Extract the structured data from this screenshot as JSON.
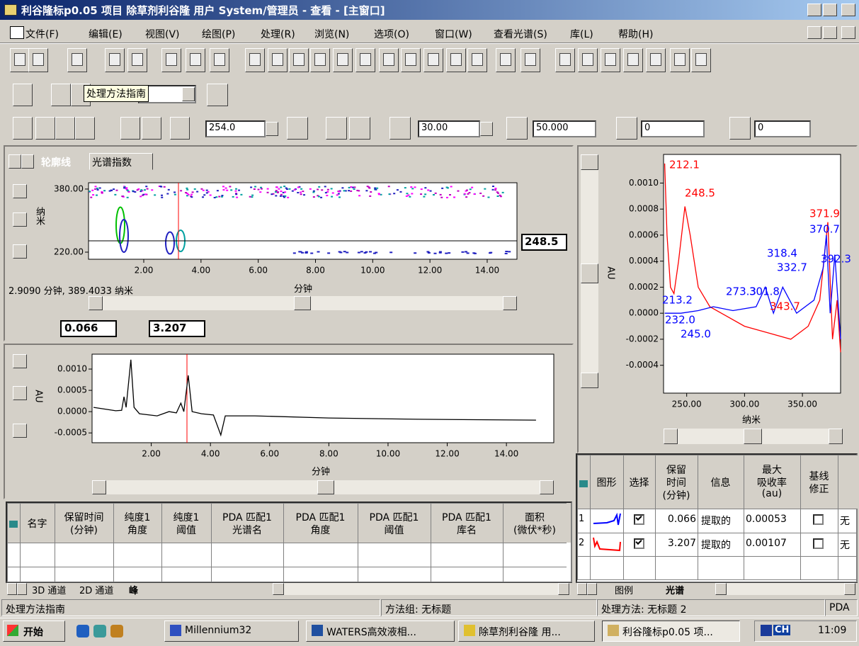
{
  "window": {
    "title": "利谷隆标p0.05 项目 除草剂利谷隆 用户 System/管理员 - 查看 - [主窗口]",
    "menu": [
      "文件(F)",
      "编辑(E)",
      "视图(V)",
      "绘图(P)",
      "处理(R)",
      "浏览(N)",
      "选项(O)",
      "窗口(W)",
      "查看光谱(S)",
      "库(L)",
      "帮助(H)"
    ]
  },
  "toolbar": {
    "tooltip": "处理方法指南",
    "wavelength": "254.0",
    "fields": [
      "30.00",
      "50.000",
      "0",
      "0"
    ]
  },
  "contour": {
    "tabs": [
      "轮廓线",
      "光谱指数"
    ],
    "ylabel": "纳米",
    "xlabel": "分钟",
    "xlim": [
      0.07,
      15.04
    ],
    "ylim": [
      202,
      396
    ],
    "xticks": [
      {
        "value": 2,
        "label": "2.00"
      },
      {
        "value": 4,
        "label": "4.00"
      },
      {
        "value": 6,
        "label": "6.00"
      },
      {
        "value": 8,
        "label": "8.00"
      },
      {
        "value": 10,
        "label": "10.00"
      },
      {
        "value": 12,
        "label": "12.00"
      },
      {
        "value": 14,
        "label": "14.00"
      }
    ],
    "yticks": [
      {
        "value": 380,
        "label": "380.00"
      },
      {
        "value": 220,
        "label": "220.00"
      }
    ],
    "wavelength": "248.5",
    "cursor": "2.9090 分钟, 389.4033 纳米",
    "range": [
      "0.066",
      "3.207"
    ]
  },
  "chromatogram": {
    "type": "line",
    "xlabel": "分钟",
    "ylabel": "AU",
    "color": "#000000",
    "xlim": [
      0,
      15.6
    ],
    "ylim": [
      -0.00073,
      0.00135
    ],
    "xticks": [
      {
        "value": 2,
        "label": "2.00"
      },
      {
        "value": 4,
        "label": "4.00"
      },
      {
        "value": 6,
        "label": "6.00"
      },
      {
        "value": 8,
        "label": "8.00"
      },
      {
        "value": 10,
        "label": "10.00"
      },
      {
        "value": 12,
        "label": "12.00"
      },
      {
        "value": 14,
        "label": "14.00"
      }
    ],
    "yticks": [
      {
        "value": 0.001,
        "label": "0.0010"
      },
      {
        "value": 0.0005,
        "label": "0.0005"
      },
      {
        "value": 0,
        "label": "0.0000"
      },
      {
        "value": -0.0005,
        "label": "-0.0005"
      }
    ],
    "x": [
      0.05,
      0.8,
      1.0,
      1.08,
      1.15,
      1.31,
      1.42,
      1.6,
      2.2,
      2.6,
      2.85,
      3.0,
      3.1,
      3.25,
      3.38,
      3.7,
      4.1,
      4.35,
      4.5,
      5.5,
      8,
      11,
      15
    ],
    "values": [
      0.0001,
      2e-05,
      3e-05,
      0.00035,
      0.0001,
      0.00122,
      0.0001,
      -5e-05,
      -0.0001,
      0.0,
      -3e-05,
      0.0002,
      0.0,
      0.00085,
      0.0,
      -5e-05,
      -8e-05,
      -0.00055,
      -0.0001,
      -0.0001,
      -0.00015,
      -0.00018,
      -0.0002
    ]
  },
  "spectrum": {
    "type": "line",
    "xlabel": "纳米",
    "ylabel": "AU",
    "xlim": [
      230,
      383
    ],
    "ylim": [
      -0.000614,
      0.00122
    ],
    "xticks": [
      {
        "value": 250,
        "label": "250.00"
      },
      {
        "value": 300,
        "label": "300.00"
      },
      {
        "value": 350,
        "label": "350.00"
      }
    ],
    "yticks": [
      {
        "value": 0.001,
        "label": "0.0010"
      },
      {
        "value": 0.0008,
        "label": "0.0008"
      },
      {
        "value": 0.0006,
        "label": "0.0006"
      },
      {
        "value": 0.0004,
        "label": "0.0004"
      },
      {
        "value": 0.0002,
        "label": "0.0002"
      },
      {
        "value": 0,
        "label": "0.0000"
      },
      {
        "value": -0.0002,
        "label": "-0.0002"
      },
      {
        "value": -0.0004,
        "label": "-0.0004"
      }
    ],
    "series": [
      {
        "color": "#ff0000",
        "x": [
          231,
          233,
          236,
          239,
          243,
          248.5,
          253,
          260,
          270,
          280,
          300,
          320,
          340,
          355,
          365,
          372,
          376,
          380,
          383
        ],
        "values": [
          0.00115,
          0.0006,
          0.0002,
          0.00015,
          0.0004,
          0.00082,
          0.0006,
          0.0002,
          5e-05,
          0.0,
          -0.0001,
          -0.00015,
          -0.0002,
          -0.0001,
          0.0001,
          0.0007,
          -0.0002,
          0.0001,
          -0.0003
        ]
      },
      {
        "color": "#0000ff",
        "x": [
          231,
          245,
          260,
          273,
          290,
          310,
          318,
          325,
          333,
          345,
          360,
          368,
          370.7,
          374,
          378,
          383
        ],
        "values": [
          0.0,
          0.0,
          2e-05,
          5e-05,
          2e-05,
          5e-05,
          0.0002,
          0.0,
          0.0002,
          0.0,
          0.0001,
          0.00035,
          0.0006,
          0.0,
          0.00045,
          -0.0002
        ]
      }
    ],
    "annotations": [
      "212.1",
      "248.5",
      "371.9",
      "370.7",
      "318.4",
      "332.7",
      "392.3",
      "273.3",
      "301.8",
      "213.2",
      "232.0",
      "245.0",
      "343.7"
    ]
  },
  "peak_table": {
    "columns": [
      [
        "名字"
      ],
      [
        "保留时间",
        "(分钟)"
      ],
      [
        "纯度1",
        "角度"
      ],
      [
        "纯度1",
        "阈值"
      ],
      [
        "PDA 匹配1",
        "光谱名"
      ],
      [
        "PDA 匹配1",
        "角度"
      ],
      [
        "PDA 匹配1",
        "阈值"
      ],
      [
        "PDA 匹配1",
        "库名"
      ],
      [
        "面积",
        "(微伏*秒)"
      ]
    ],
    "tabs": [
      "3D 通道",
      "2D 通道",
      "峰"
    ]
  },
  "spectrum_table": {
    "columns": [
      [
        "图形"
      ],
      [
        "选择"
      ],
      [
        "保留",
        "时间",
        "(分钟)"
      ],
      [
        "信息"
      ],
      [
        "最大",
        "吸收率",
        "(au)"
      ],
      [
        "基线",
        "修正"
      ]
    ],
    "rows": [
      [
        "1",
        "0.066",
        "提取的",
        "0.00053",
        "无"
      ],
      [
        "2",
        "3.207",
        "提取的",
        "0.00107",
        "无"
      ]
    ],
    "tabs": [
      "图例",
      "光谱"
    ]
  },
  "status": [
    "处理方法指南",
    "方法组: 无标题",
    "处理方法: 无标题 2",
    "PDA"
  ],
  "taskbar": {
    "start": "开始",
    "tasks": [
      "Millennium32",
      "WATERS高效液相...",
      "除草剂利谷隆 用...",
      "利谷隆标p0.05 项..."
    ],
    "lang": "CH",
    "clock": "11:09"
  }
}
